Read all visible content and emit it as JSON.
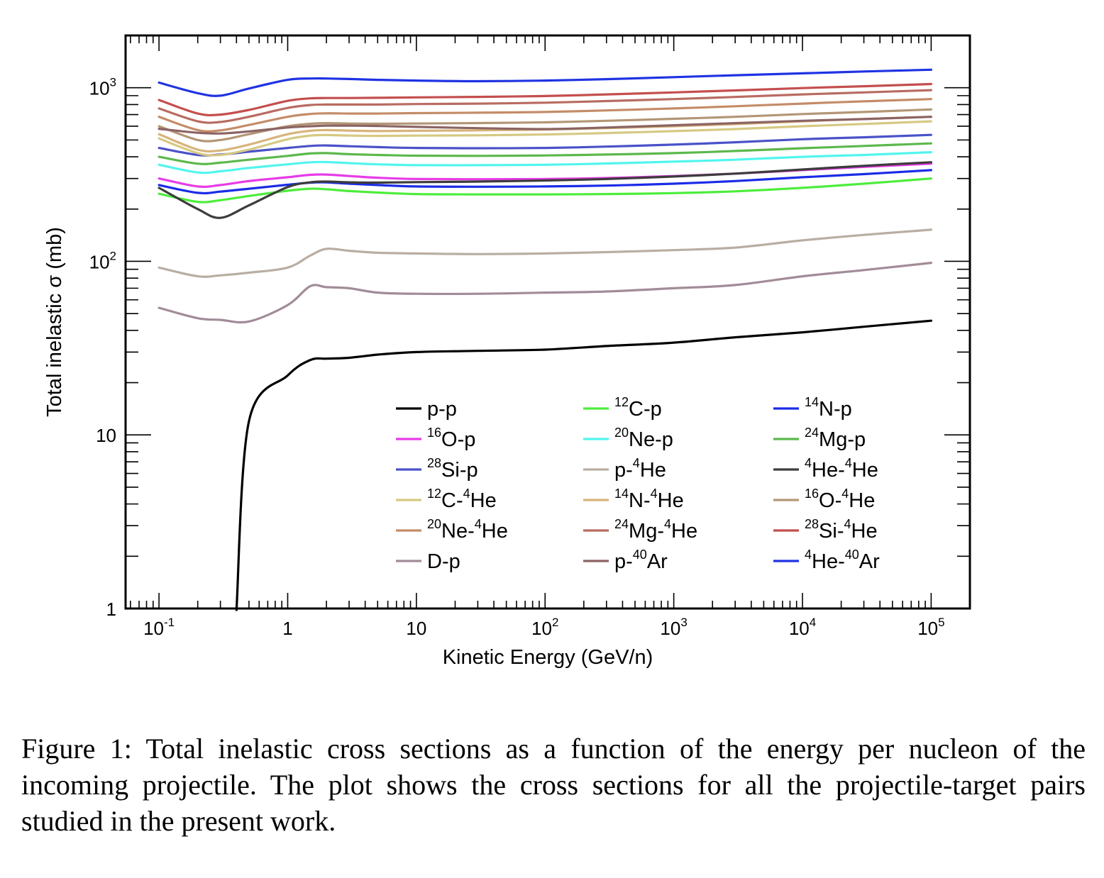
{
  "chart_data": {
    "type": "line",
    "xlabel": "Kinetic Energy (GeV/n)",
    "ylabel": "Total inelastic σ (mb)",
    "x_scale": "log",
    "y_scale": "log",
    "xlim": [
      0.055,
      200000
    ],
    "ylim": [
      1,
      2000
    ],
    "x_ticks": [
      {
        "value": 0.1,
        "base": "10",
        "exp": "-1"
      },
      {
        "value": 1,
        "base": "1",
        "exp": ""
      },
      {
        "value": 10,
        "base": "10",
        "exp": ""
      },
      {
        "value": 100,
        "base": "10",
        "exp": "2"
      },
      {
        "value": 1000,
        "base": "10",
        "exp": "3"
      },
      {
        "value": 10000,
        "base": "10",
        "exp": "4"
      },
      {
        "value": 100000,
        "base": "10",
        "exp": "5"
      }
    ],
    "y_ticks": [
      {
        "value": 1,
        "base": "1",
        "exp": ""
      },
      {
        "value": 10,
        "base": "10",
        "exp": ""
      },
      {
        "value": 100,
        "base": "10",
        "exp": "2"
      },
      {
        "value": 1000,
        "base": "10",
        "exp": "3"
      }
    ],
    "grid": false,
    "legend": {
      "placement": "bottom-center",
      "columns": 3
    },
    "x": [
      0.1,
      0.2,
      0.3,
      0.5,
      1,
      1.5,
      2,
      3,
      5,
      10,
      30,
      100,
      300,
      1000,
      3000,
      10000,
      30000,
      100000
    ],
    "series": [
      {
        "name": [
          {
            "t": "p-p"
          }
        ],
        "color": "#000000",
        "values": [
          null,
          null,
          null,
          12,
          22,
          27,
          27.5,
          27.8,
          29,
          30,
          30.5,
          31,
          32.5,
          34,
          36.5,
          39,
          42,
          45.5
        ]
      },
      {
        "name": [
          {
            "s": "12"
          },
          {
            "t": "C-p"
          }
        ],
        "color": "#4ded3c",
        "values": [
          245,
          220,
          225,
          238,
          255,
          262,
          260,
          254,
          249,
          244,
          243,
          243,
          244,
          247,
          253,
          265,
          280,
          300
        ]
      },
      {
        "name": [
          {
            "s": "14"
          },
          {
            "t": "N-p"
          }
        ],
        "color": "#1a2ce6",
        "values": [
          275,
          248,
          252,
          262,
          276,
          284,
          285,
          280,
          275,
          270,
          269,
          270,
          273,
          280,
          290,
          305,
          318,
          335
        ]
      },
      {
        "name": [
          {
            "s": "16"
          },
          {
            "t": "O-p"
          }
        ],
        "color": "#e63ce6",
        "values": [
          300,
          270,
          275,
          290,
          305,
          315,
          316,
          310,
          303,
          298,
          297,
          298,
          302,
          310,
          320,
          335,
          350,
          365
        ]
      },
      {
        "name": [
          {
            "s": "20"
          },
          {
            "t": "Ne-p"
          }
        ],
        "color": "#52f5ee",
        "values": [
          360,
          325,
          330,
          345,
          362,
          372,
          373,
          368,
          362,
          358,
          358,
          360,
          366,
          375,
          385,
          400,
          410,
          425
        ]
      },
      {
        "name": [
          {
            "s": "24"
          },
          {
            "t": "Mg-p"
          }
        ],
        "color": "#5cb84c",
        "values": [
          400,
          365,
          370,
          385,
          405,
          418,
          420,
          414,
          410,
          406,
          405,
          407,
          412,
          420,
          432,
          448,
          462,
          478
        ]
      },
      {
        "name": [
          {
            "s": "28"
          },
          {
            "t": "Si-p"
          }
        ],
        "color": "#4a52c8",
        "values": [
          450,
          410,
          412,
          428,
          450,
          462,
          465,
          460,
          455,
          450,
          448,
          450,
          458,
          470,
          485,
          505,
          518,
          535
        ]
      },
      {
        "name": [
          {
            "t": "p-"
          },
          {
            "s": "4"
          },
          {
            "t": "He"
          }
        ],
        "color": "#b8aea2",
        "values": [
          92,
          82,
          83,
          86,
          92,
          108,
          118,
          115,
          112,
          111,
          110,
          111,
          113,
          116,
          120,
          132,
          142,
          152
        ]
      },
      {
        "name": [
          {
            "s": "4"
          },
          {
            "t": "He-"
          },
          {
            "s": "4"
          },
          {
            "t": "He"
          }
        ],
        "color": "#3c3c3c",
        "values": [
          265,
          200,
          178,
          210,
          268,
          285,
          288,
          285,
          284,
          286,
          288,
          292,
          298,
          308,
          320,
          338,
          355,
          372
        ]
      },
      {
        "name": [
          {
            "s": "12"
          },
          {
            "t": "C-"
          },
          {
            "s": "4"
          },
          {
            "t": "He"
          }
        ],
        "color": "#d6c982",
        "values": [
          510,
          420,
          410,
          440,
          505,
          530,
          534,
          530,
          528,
          530,
          532,
          538,
          548,
          562,
          578,
          600,
          618,
          640
        ]
      },
      {
        "name": [
          {
            "s": "14"
          },
          {
            "t": "N-"
          },
          {
            "s": "4"
          },
          {
            "t": "He"
          }
        ],
        "color": "#d8b47a",
        "values": [
          540,
          440,
          435,
          470,
          540,
          565,
          570,
          566,
          563,
          565,
          568,
          574,
          585,
          600,
          617,
          640,
          660,
          680
        ]
      },
      {
        "name": [
          {
            "s": "16"
          },
          {
            "t": "O-"
          },
          {
            "s": "4"
          },
          {
            "t": "He"
          }
        ],
        "color": "#b39676",
        "values": [
          600,
          500,
          500,
          540,
          600,
          620,
          625,
          622,
          620,
          622,
          626,
          632,
          645,
          662,
          680,
          705,
          725,
          750
        ]
      },
      {
        "name": [
          {
            "s": "20"
          },
          {
            "t": "Ne-"
          },
          {
            "s": "4"
          },
          {
            "t": "He"
          }
        ],
        "color": "#c48c68",
        "values": [
          680,
          570,
          568,
          610,
          680,
          706,
          712,
          710,
          710,
          714,
          718,
          725,
          740,
          760,
          782,
          810,
          835,
          860
        ]
      },
      {
        "name": [
          {
            "s": "24"
          },
          {
            "t": "Mg-"
          },
          {
            "s": "4"
          },
          {
            "t": "He"
          }
        ],
        "color": "#b86c62",
        "values": [
          760,
          640,
          635,
          680,
          765,
          795,
          800,
          800,
          800,
          805,
          810,
          820,
          838,
          860,
          885,
          915,
          940,
          968
        ]
      },
      {
        "name": [
          {
            "s": "28"
          },
          {
            "t": "Si-"
          },
          {
            "s": "4"
          },
          {
            "t": "He"
          }
        ],
        "color": "#c44e4e",
        "values": [
          850,
          710,
          700,
          745,
          840,
          868,
          872,
          872,
          875,
          880,
          886,
          896,
          915,
          940,
          965,
          995,
          1020,
          1050
        ]
      },
      {
        "name": [
          {
            "t": "D-p"
          }
        ],
        "color": "#a28b98",
        "values": [
          54,
          47,
          46,
          45,
          56,
          72,
          71,
          70,
          66,
          65,
          65,
          66,
          67,
          70,
          73,
          82,
          89,
          98
        ]
      },
      {
        "name": [
          {
            "t": "p-"
          },
          {
            "s": "40"
          },
          {
            "t": "Ar"
          }
        ],
        "color": "#8c6464",
        "values": [
          580,
          550,
          545,
          560,
          590,
          600,
          605,
          605,
          602,
          595,
          585,
          578,
          590,
          608,
          625,
          645,
          660,
          680
        ]
      },
      {
        "name": [
          {
            "s": "4"
          },
          {
            "t": "He-"
          },
          {
            "s": "40"
          },
          {
            "t": "Ar"
          }
        ],
        "color": "#1f33e3",
        "values": [
          1070,
          930,
          900,
          990,
          1110,
          1130,
          1130,
          1122,
          1110,
          1100,
          1090,
          1100,
          1120,
          1150,
          1180,
          1210,
          1240,
          1270
        ]
      }
    ]
  },
  "caption": "Figure 1: Total inelastic cross sections as a function of the energy per nucleon of the incoming projectile. The plot shows the cross sections for all the projectile-target pairs studied in the present work."
}
